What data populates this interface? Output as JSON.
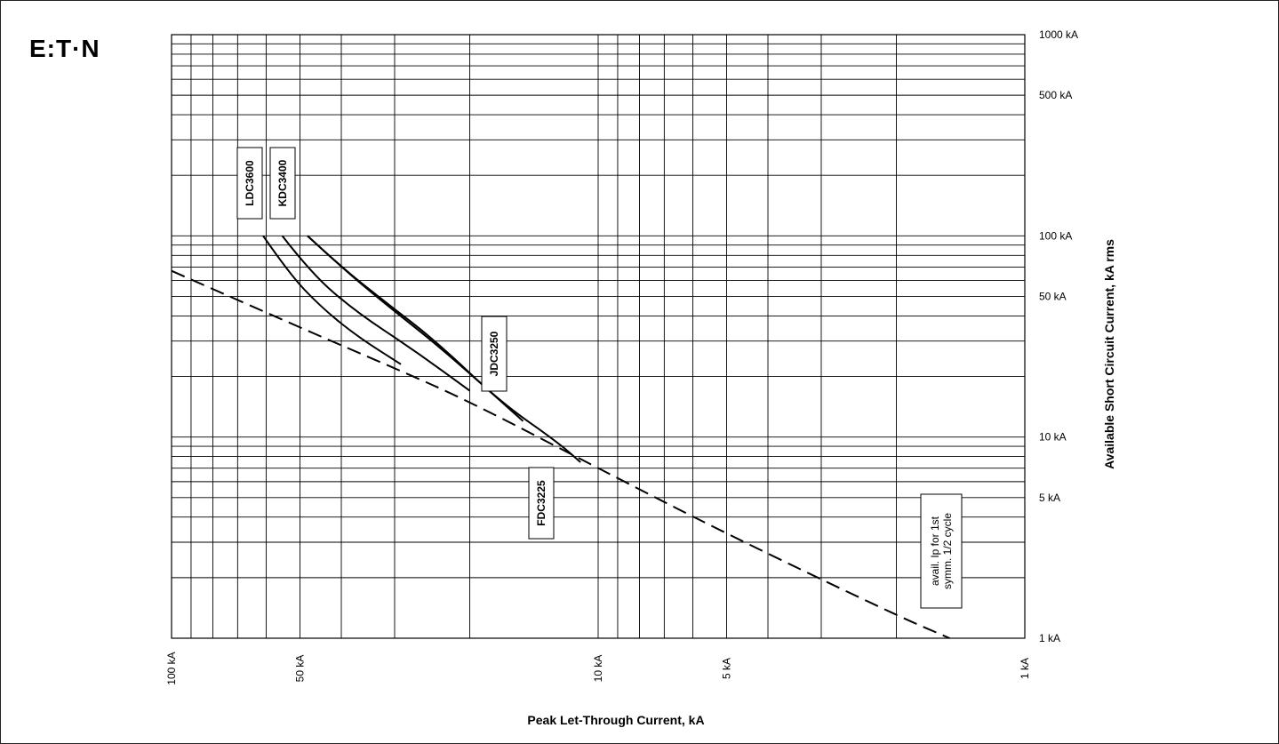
{
  "brand": {
    "logo_text": "E:T·N"
  },
  "chart_data": {
    "type": "line",
    "x_scale": "log",
    "x_reversed": true,
    "y_scale": "log",
    "xlabel": "Peak Let-Through Current, kA",
    "ylabel": "Available Short Circuit Current, kA rms",
    "xlim": [
      100,
      1
    ],
    "ylim": [
      1,
      1000
    ],
    "x_ticks": [
      100,
      50,
      10,
      5,
      1
    ],
    "x_tick_labels": [
      "100 kA",
      "50 kA",
      "10 kA",
      "5 kA",
      "1 kA"
    ],
    "y_ticks": [
      1000,
      500,
      100,
      50,
      10,
      5,
      1
    ],
    "y_tick_labels": [
      "1000 kA",
      "500 kA",
      "100 kA",
      "50 kA",
      "10 kA",
      "5 kA",
      "1 kA"
    ],
    "grid": true,
    "series": [
      {
        "name": "LDC3600",
        "style": "solid",
        "points": [
          [
            61,
            100
          ],
          [
            53,
            65
          ],
          [
            45,
            45
          ],
          [
            37,
            32
          ],
          [
            29,
            23
          ]
        ]
      },
      {
        "name": "KDC3400",
        "style": "solid",
        "points": [
          [
            55,
            100
          ],
          [
            47,
            65
          ],
          [
            37,
            42
          ],
          [
            27,
            27
          ],
          [
            20,
            17
          ]
        ]
      },
      {
        "name": "JDC3250",
        "style": "solid",
        "points": [
          [
            48,
            100
          ],
          [
            40,
            70
          ],
          [
            32,
            47
          ],
          [
            23,
            27
          ],
          [
            15,
            12
          ]
        ]
      },
      {
        "name": "FDC3225",
        "style": "solid",
        "points": [
          [
            48,
            100
          ],
          [
            40,
            70
          ],
          [
            32,
            48
          ],
          [
            24,
            30
          ],
          [
            17,
            15
          ],
          [
            12.5,
            9.5
          ],
          [
            11,
            7.5
          ]
        ]
      },
      {
        "name": "avail. Ip for 1st symm. 1/2 cycle",
        "style": "dashed",
        "points": [
          [
            100,
            67
          ],
          [
            50,
            35
          ],
          [
            30,
            22
          ],
          [
            20,
            15
          ],
          [
            10,
            7
          ],
          [
            5,
            3.3
          ],
          [
            2,
            1.3
          ],
          [
            1.5,
            1
          ]
        ]
      }
    ],
    "annotations": [
      {
        "text": "LDC3600",
        "series": "LDC3600"
      },
      {
        "text": "KDC3400",
        "series": "KDC3400"
      },
      {
        "text": "JDC3250",
        "series": "JDC3250"
      },
      {
        "text": "FDC3225",
        "series": "FDC3225"
      },
      {
        "text_lines": [
          "avail. Ip for 1st",
          "symm. 1/2 cycle"
        ],
        "series": "avail. Ip for 1st symm. 1/2 cycle"
      }
    ]
  }
}
